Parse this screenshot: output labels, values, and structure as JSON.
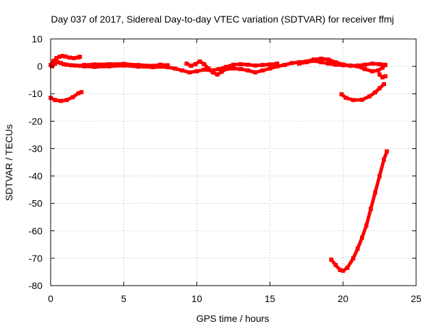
{
  "chart_data": {
    "type": "scatter",
    "title": "Day 037 of 2017, Sidereal Day-to-day VTEC variation (SDTVAR) for receiver ffmj",
    "xlabel": "GPS time / hours",
    "ylabel": "SDTVAR / TECUs",
    "xlim": [
      0,
      25
    ],
    "ylim": [
      -80,
      10
    ],
    "xticks": [
      "0",
      "5",
      "10",
      "15",
      "20",
      "25"
    ],
    "yticks": [
      "10",
      "0",
      "-10",
      "-20",
      "-30",
      "-40",
      "-50",
      "-60",
      "-70",
      "-80"
    ],
    "grid": true,
    "color": "#ff0000",
    "series": [
      {
        "points": [
          [
            0.0,
            -11.5
          ],
          [
            0.3,
            -12.3
          ],
          [
            0.7,
            -12.6
          ],
          [
            1.1,
            -12.3
          ],
          [
            1.5,
            -11.3
          ],
          [
            1.9,
            -9.8
          ],
          [
            2.1,
            -9.4
          ]
        ]
      },
      {
        "points": [
          [
            0.0,
            0.5
          ],
          [
            0.2,
            2.0
          ],
          [
            0.4,
            3.0
          ],
          [
            0.6,
            3.5
          ],
          [
            0.8,
            3.8
          ],
          [
            1.0,
            3.6
          ],
          [
            1.3,
            3.2
          ],
          [
            1.6,
            3.0
          ],
          [
            1.9,
            3.3
          ],
          [
            2.0,
            3.5
          ]
        ]
      },
      {
        "points": [
          [
            0.1,
            0.0
          ],
          [
            0.3,
            1.0
          ],
          [
            0.5,
            1.5
          ],
          [
            0.7,
            1.2
          ],
          [
            0.9,
            0.8
          ],
          [
            1.1,
            0.6
          ],
          [
            1.4,
            0.4
          ],
          [
            1.7,
            0.3
          ],
          [
            2.0,
            0.2
          ],
          [
            2.3,
            0.5
          ],
          [
            3.0,
            0.7
          ],
          [
            4.0,
            0.8
          ],
          [
            5.0,
            0.9
          ],
          [
            6.0,
            0.5
          ],
          [
            7.0,
            0.2
          ],
          [
            7.5,
            0.6
          ],
          [
            8.0,
            0.4
          ]
        ]
      },
      {
        "points": [
          [
            2.3,
            0.0
          ],
          [
            3.0,
            -0.2
          ],
          [
            4.0,
            0.0
          ],
          [
            5.0,
            0.3
          ],
          [
            6.0,
            -0.1
          ],
          [
            7.0,
            -0.3
          ],
          [
            8.0,
            -0.2
          ]
        ]
      },
      {
        "points": [
          [
            8.0,
            -0.3
          ],
          [
            8.5,
            -0.8
          ],
          [
            9.0,
            -1.5
          ],
          [
            9.5,
            -2.2
          ],
          [
            10.0,
            -1.8
          ],
          [
            10.5,
            -1.2
          ],
          [
            11.0,
            -1.5
          ],
          [
            11.5,
            -1.0
          ],
          [
            12.0,
            -0.2
          ],
          [
            12.5,
            0.6
          ],
          [
            13.0,
            0.8
          ],
          [
            13.5,
            0.6
          ],
          [
            14.0,
            0.3
          ],
          [
            14.5,
            0.5
          ],
          [
            15.0,
            0.7
          ],
          [
            15.5,
            1.0
          ]
        ]
      },
      {
        "points": [
          [
            9.3,
            1.0
          ],
          [
            9.6,
            0.2
          ],
          [
            9.9,
            0.8
          ],
          [
            10.2,
            1.8
          ],
          [
            10.5,
            0.8
          ],
          [
            10.8,
            -0.8
          ],
          [
            11.1,
            -2.2
          ],
          [
            11.4,
            -3.0
          ],
          [
            11.7,
            -2.0
          ],
          [
            12.0,
            -1.0
          ],
          [
            12.5,
            -0.8
          ],
          [
            13.0,
            -1.0
          ],
          [
            13.5,
            -1.5
          ],
          [
            14.0,
            -2.2
          ],
          [
            14.5,
            -1.5
          ],
          [
            15.0,
            -0.8
          ],
          [
            15.5,
            0.0
          ]
        ]
      },
      {
        "points": [
          [
            15.5,
            0.0
          ],
          [
            16.0,
            0.5
          ],
          [
            16.5,
            1.2
          ],
          [
            17.0,
            1.5
          ],
          [
            17.5,
            1.8
          ],
          [
            18.0,
            2.5
          ],
          [
            18.5,
            2.8
          ],
          [
            19.0,
            2.5
          ],
          [
            19.5,
            1.5
          ],
          [
            20.0,
            0.7
          ],
          [
            20.5,
            0.2
          ],
          [
            21.0,
            0.3
          ],
          [
            21.5,
            0.6
          ],
          [
            22.0,
            1.0
          ],
          [
            22.5,
            0.8
          ],
          [
            22.8,
            0.6
          ]
        ]
      },
      {
        "points": [
          [
            17.0,
            1.0
          ],
          [
            17.5,
            1.5
          ],
          [
            18.0,
            2.0
          ],
          [
            18.5,
            1.5
          ],
          [
            19.0,
            1.0
          ],
          [
            19.5,
            0.6
          ],
          [
            20.0,
            0.4
          ],
          [
            20.5,
            0.3
          ],
          [
            21.0,
            0.0
          ],
          [
            21.5,
            -1.0
          ],
          [
            22.0,
            -1.8
          ],
          [
            22.4,
            -1.5
          ],
          [
            22.7,
            -0.5
          ],
          [
            22.9,
            0.5
          ]
        ]
      },
      {
        "points": [
          [
            22.5,
            -3.0
          ],
          [
            22.7,
            -4.0
          ],
          [
            22.9,
            -3.6
          ]
        ]
      },
      {
        "points": [
          [
            19.9,
            -10.2
          ],
          [
            20.2,
            -11.5
          ],
          [
            20.7,
            -12.3
          ],
          [
            21.3,
            -12.2
          ],
          [
            21.8,
            -11.0
          ],
          [
            22.2,
            -9.5
          ],
          [
            22.5,
            -8.0
          ],
          [
            22.8,
            -6.5
          ]
        ]
      },
      {
        "points": [
          [
            19.2,
            -70.5
          ],
          [
            19.5,
            -72.5
          ],
          [
            19.8,
            -74.3
          ],
          [
            20.0,
            -74.6
          ],
          [
            20.3,
            -73.5
          ],
          [
            20.7,
            -70.0
          ],
          [
            21.0,
            -66.5
          ],
          [
            21.3,
            -62.5
          ],
          [
            21.6,
            -58.0
          ],
          [
            21.9,
            -52.0
          ],
          [
            22.2,
            -46.0
          ],
          [
            22.5,
            -40.0
          ],
          [
            22.8,
            -34.0
          ],
          [
            23.0,
            -31.0
          ]
        ]
      }
    ]
  }
}
